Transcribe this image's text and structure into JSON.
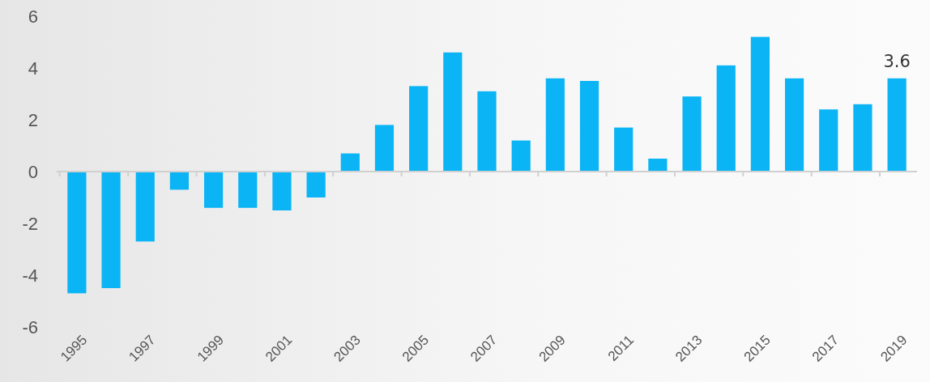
{
  "chart_data": {
    "type": "bar",
    "categories": [
      "1995",
      null,
      "1997",
      null,
      "1999",
      null,
      "2001",
      null,
      "2003",
      null,
      "2005",
      null,
      "2007",
      null,
      "2009",
      null,
      "2011",
      null,
      "2013",
      null,
      "2015",
      null,
      "2017",
      null,
      "2019"
    ],
    "values": [
      -4.7,
      -4.5,
      -2.7,
      -0.7,
      -1.4,
      -1.4,
      -1.5,
      -1.0,
      0.7,
      1.8,
      3.3,
      4.6,
      3.1,
      1.2,
      3.6,
      3.5,
      1.7,
      0.5,
      2.9,
      4.1,
      5.2,
      3.6,
      2.4,
      2.6,
      3.6
    ],
    "value_labels": [
      null,
      null,
      null,
      null,
      null,
      null,
      null,
      null,
      null,
      null,
      null,
      null,
      null,
      null,
      null,
      null,
      null,
      null,
      null,
      null,
      null,
      null,
      null,
      null,
      "3.6"
    ],
    "color": "#0ab4f5",
    "ylim": [
      -6,
      6
    ],
    "yticks": [
      -6,
      -4,
      -2,
      0,
      2,
      4,
      6
    ]
  }
}
